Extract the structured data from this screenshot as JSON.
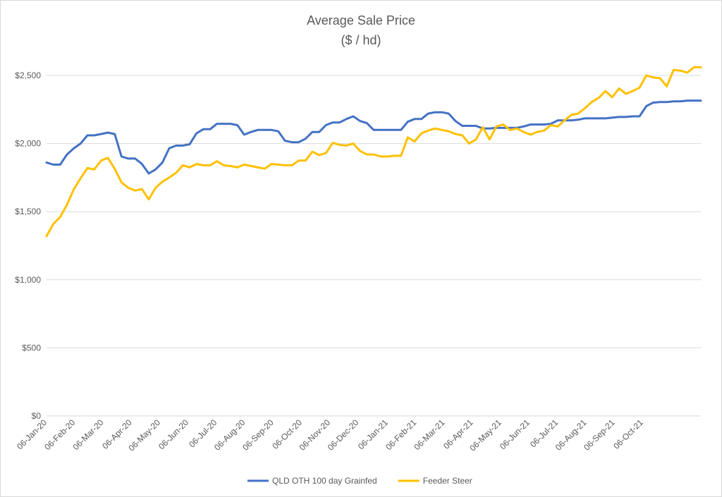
{
  "chart_data": {
    "type": "line",
    "title": "Average Sale Price",
    "subtitle": "($ / hd)",
    "xlabel": "",
    "ylabel": "",
    "ylim": [
      0,
      2500
    ],
    "y_ticks": [
      0,
      500,
      1000,
      1500,
      2000,
      2500
    ],
    "y_tick_labels": [
      "$0",
      "$500",
      "$1,000",
      "$1,500",
      "$2,000",
      "$2,500"
    ],
    "x_tick_labels": [
      "06-Jan-20",
      "06-Feb-20",
      "06-Mar-20",
      "06-Apr-20",
      "06-May-20",
      "06-Jun-20",
      "06-Jul-20",
      "06-Aug-20",
      "06-Sep-20",
      "06-Oct-20",
      "06-Nov-20",
      "06-Dec-20",
      "06-Jan-21",
      "06-Feb-21",
      "06-Mar-21",
      "06-Apr-21",
      "06-May-21",
      "06-Jun-21",
      "06-Jul-21",
      "06-Aug-21",
      "06-Sep-21",
      "06-Oct-21"
    ],
    "grid": true,
    "legend_position": "bottom",
    "series": [
      {
        "name": "QLD OTH 100 day Grainfed",
        "color": "#4472C4",
        "values": [
          1860,
          1845,
          1845,
          1920,
          1965,
          2000,
          2060,
          2060,
          2070,
          2080,
          2070,
          1905,
          1890,
          1890,
          1850,
          1780,
          1810,
          1860,
          1965,
          1985,
          1985,
          1995,
          2075,
          2105,
          2105,
          2145,
          2145,
          2145,
          2135,
          2065,
          2085,
          2100,
          2100,
          2100,
          2090,
          2020,
          2010,
          2010,
          2035,
          2085,
          2085,
          2135,
          2155,
          2155,
          2180,
          2200,
          2165,
          2150,
          2100,
          2100,
          2100,
          2100,
          2100,
          2160,
          2180,
          2180,
          2220,
          2230,
          2230,
          2220,
          2165,
          2130,
          2130,
          2130,
          2110,
          2110,
          2115,
          2115,
          2115,
          2115,
          2125,
          2140,
          2140,
          2140,
          2145,
          2170,
          2170,
          2170,
          2175,
          2185,
          2185,
          2185,
          2185,
          2190,
          2195,
          2195,
          2200,
          2200,
          2275,
          2300,
          2305,
          2305,
          2310,
          2310,
          2315,
          2315,
          2315
        ]
      },
      {
        "name": "Feeder Steer",
        "color": "#FFC000",
        "values": [
          1320,
          1410,
          1460,
          1550,
          1665,
          1745,
          1820,
          1810,
          1875,
          1895,
          1815,
          1715,
          1675,
          1655,
          1665,
          1590,
          1675,
          1720,
          1750,
          1785,
          1840,
          1825,
          1850,
          1840,
          1840,
          1870,
          1840,
          1835,
          1825,
          1845,
          1835,
          1825,
          1815,
          1850,
          1845,
          1840,
          1840,
          1875,
          1875,
          1940,
          1915,
          1930,
          2005,
          1990,
          1985,
          2000,
          1945,
          1920,
          1920,
          1905,
          1905,
          1910,
          1910,
          2045,
          2015,
          2075,
          2095,
          2110,
          2100,
          2090,
          2070,
          2060,
          2000,
          2030,
          2120,
          2030,
          2125,
          2140,
          2100,
          2110,
          2085,
          2065,
          2085,
          2095,
          2135,
          2125,
          2170,
          2210,
          2220,
          2260,
          2305,
          2335,
          2385,
          2340,
          2405,
          2365,
          2385,
          2410,
          2500,
          2485,
          2480,
          2420,
          2540,
          2535,
          2520,
          2560,
          2560
        ]
      }
    ]
  }
}
